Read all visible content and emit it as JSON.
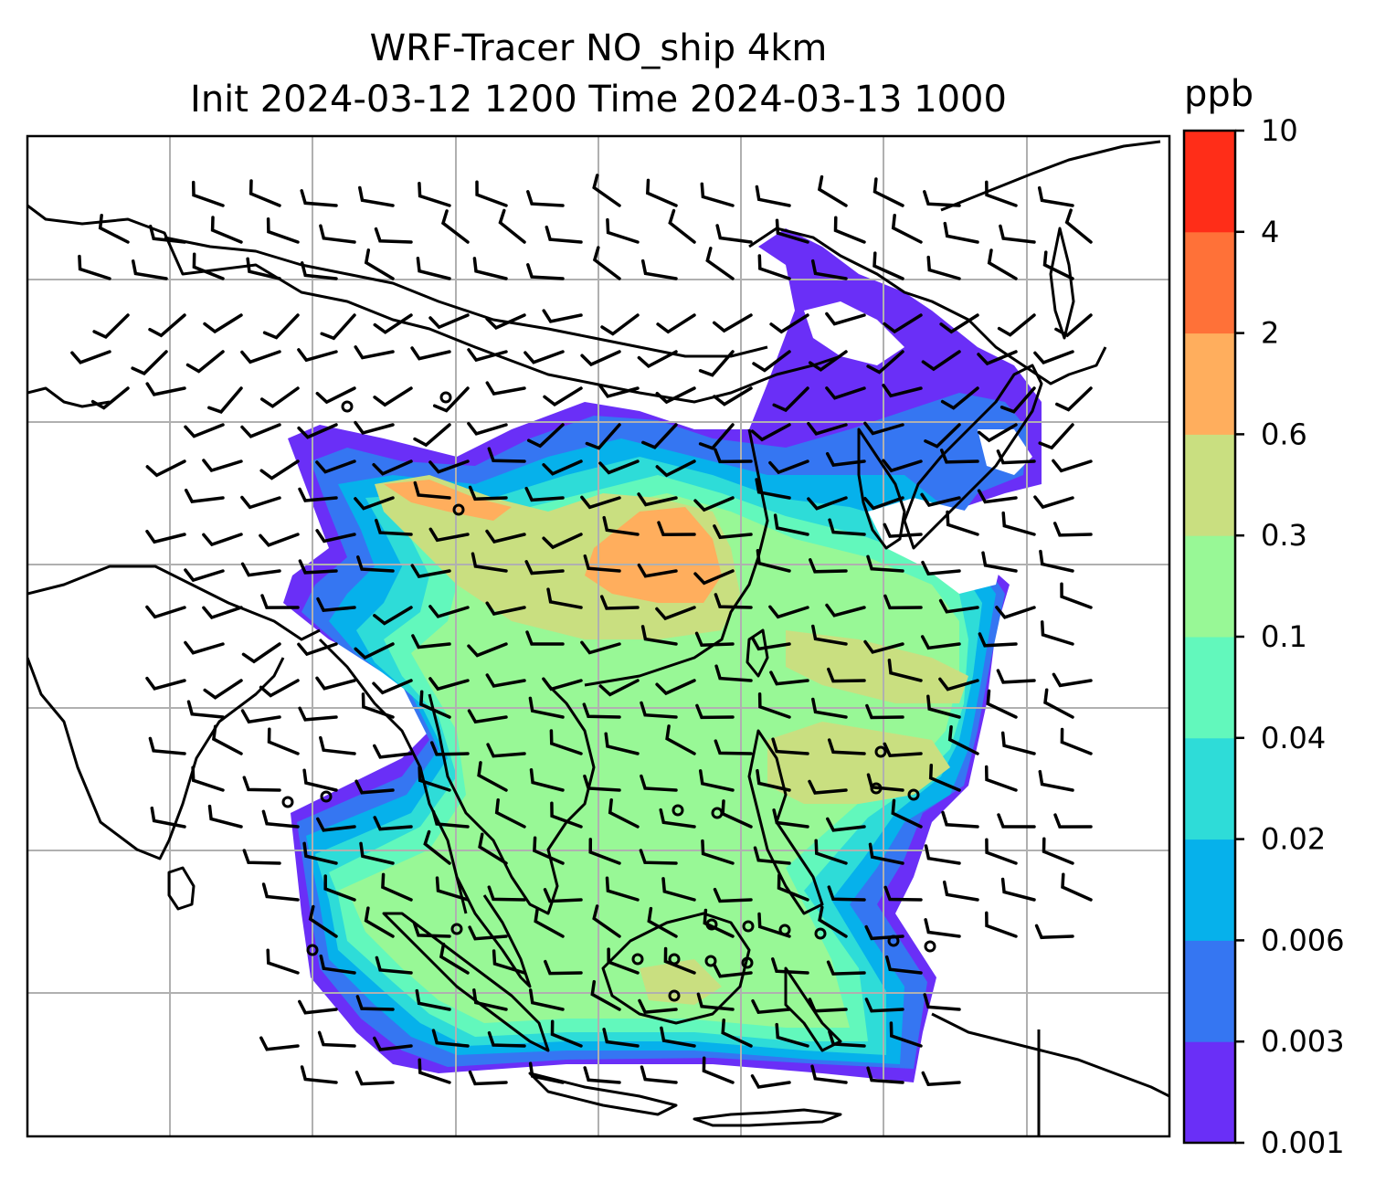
{
  "title": {
    "line1": "WRF-Tracer NO_ship 4km",
    "line2": "Init 2024-03-12 1200 Time 2024-03-13 1000"
  },
  "colorbar": {
    "label": "ppb",
    "levels": [
      "0.001",
      "0.003",
      "0.006",
      "0.02",
      "0.04",
      "0.1",
      "0.3",
      "0.6",
      "2",
      "4",
      "10"
    ],
    "colors": [
      "#6a2ff7",
      "#3576f2",
      "#06b1eb",
      "#2edcd8",
      "#62f8bc",
      "#98f896",
      "#c9df80",
      "#ffae5d",
      "#ff7138",
      "#ff2d18"
    ]
  },
  "map": {
    "gridlines": true,
    "coastline_color": "#000000",
    "grid_color": "#b0b0b0"
  }
}
